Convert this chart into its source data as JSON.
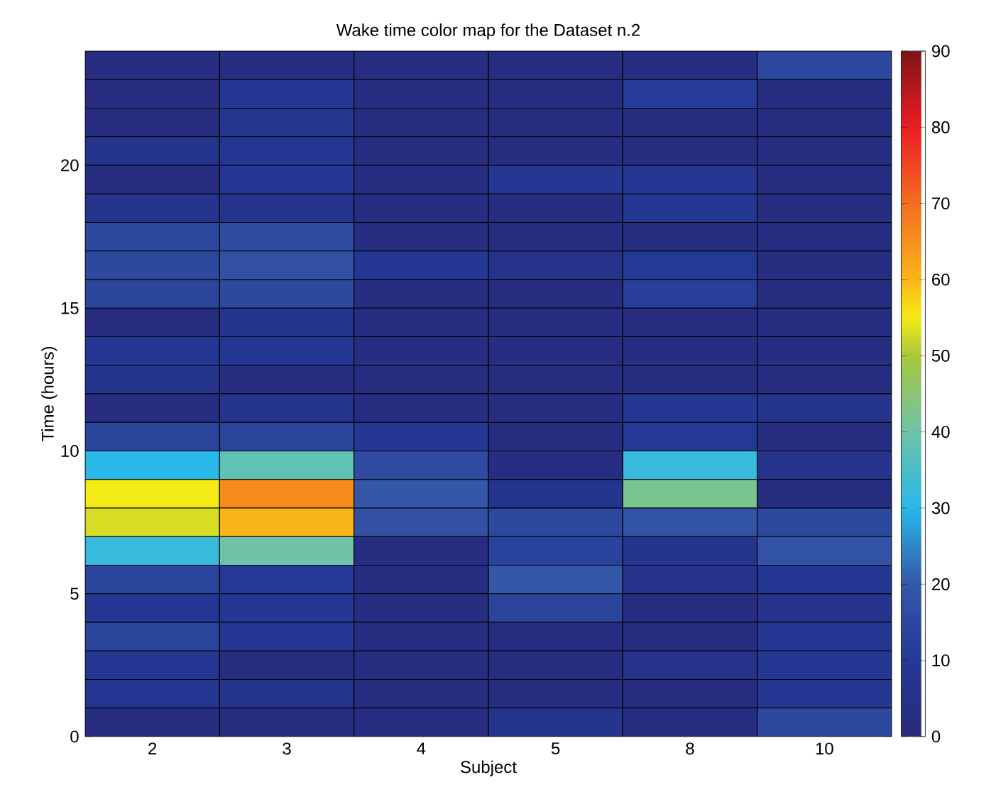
{
  "chart_data": {
    "type": "heatmap",
    "title": "Wake time color map for the Dataset n.2",
    "xlabel": "Subject",
    "ylabel": "Time (hours)",
    "categories": [
      "2",
      "3",
      "4",
      "5",
      "8",
      "10"
    ],
    "ylim": [
      0,
      24
    ],
    "yticks": [
      0,
      5,
      10,
      15,
      20
    ],
    "clim": [
      0,
      90
    ],
    "cticks": [
      0,
      10,
      20,
      30,
      40,
      50,
      60,
      70,
      80,
      90
    ],
    "cells": [
      [
        3,
        3,
        3,
        3,
        3,
        15
      ],
      [
        3,
        9,
        3,
        3,
        11,
        3
      ],
      [
        3,
        8,
        3,
        3,
        3,
        3
      ],
      [
        7,
        9,
        3,
        3,
        3,
        3
      ],
      [
        3,
        9,
        3,
        9,
        9,
        3
      ],
      [
        7,
        7,
        3,
        3,
        9,
        3
      ],
      [
        15,
        16,
        3,
        3,
        3,
        3
      ],
      [
        15,
        18,
        9,
        6,
        10,
        3
      ],
      [
        14,
        15,
        3,
        3,
        12,
        3
      ],
      [
        3,
        7,
        3,
        3,
        3,
        3
      ],
      [
        9,
        9,
        3,
        3,
        3,
        3
      ],
      [
        7,
        3,
        3,
        3,
        3,
        3
      ],
      [
        3,
        7,
        3,
        3,
        9,
        7
      ],
      [
        14,
        14,
        9,
        3,
        10,
        3
      ],
      [
        30,
        38,
        16,
        3,
        32,
        6
      ],
      [
        55,
        66,
        20,
        7,
        42,
        3
      ],
      [
        53,
        60,
        18,
        15,
        19,
        15
      ],
      [
        32,
        40,
        3,
        13,
        7,
        19
      ],
      [
        14,
        10,
        3,
        20,
        6,
        9
      ],
      [
        9,
        9,
        3,
        14,
        3,
        6
      ],
      [
        14,
        9,
        3,
        3,
        3,
        9
      ],
      [
        9,
        3,
        3,
        3,
        6,
        9
      ],
      [
        9,
        7,
        3,
        3,
        3,
        9
      ],
      [
        3,
        3,
        3,
        7,
        3,
        15
      ]
    ]
  }
}
